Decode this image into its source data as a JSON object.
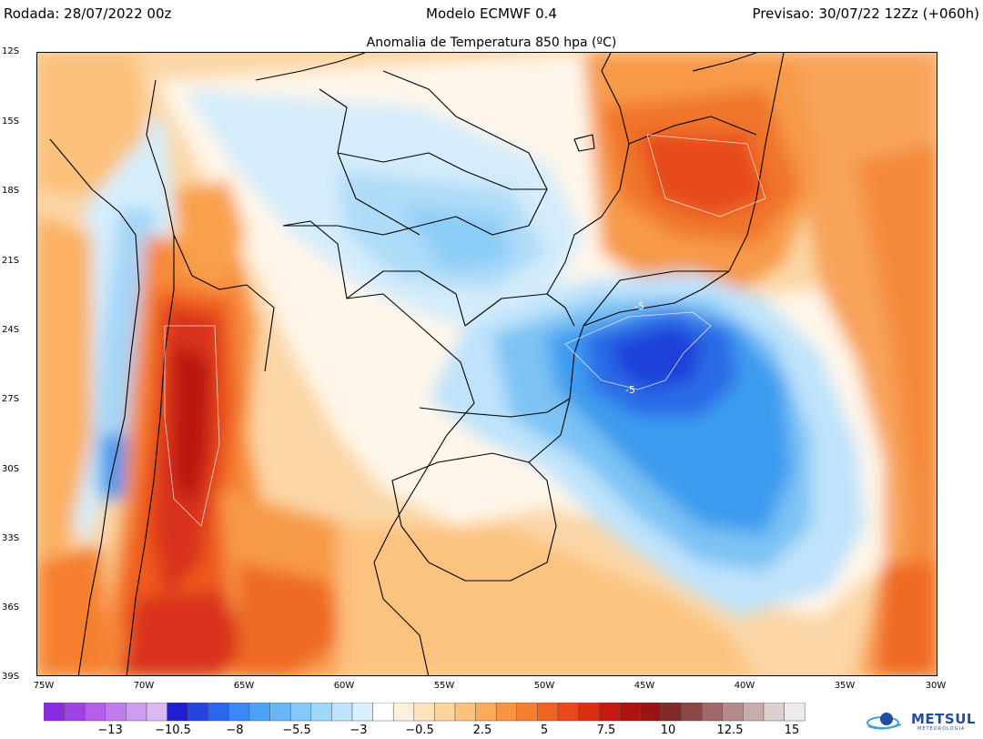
{
  "header": {
    "left": "Rodada: 28/07/2022 00z",
    "center": "Modelo ECMWF 0.4",
    "right": "Previsao: 30/07/22 12Zz (+060h)"
  },
  "map": {
    "title": "Anomalia de Temperatura 850 hpa (ºC)",
    "lat_labels": [
      "12S",
      "15S",
      "18S",
      "21S",
      "24S",
      "27S",
      "30S",
      "33S",
      "36S",
      "39S"
    ],
    "lon_labels": [
      "75W",
      "70W",
      "65W",
      "60W",
      "55W",
      "50W",
      "45W",
      "40W",
      "35W",
      "30W"
    ],
    "contour_labels": [
      "-5",
      "-5"
    ],
    "lon_range": [
      -75,
      -30
    ],
    "lat_range": [
      -39,
      -12
    ],
    "anomaly_features": [
      {
        "name": "cold-core-south-brazil-coast",
        "lon": -45.5,
        "lat": -24.3,
        "value": -9
      },
      {
        "name": "cold-ocean-extension",
        "lon": -44,
        "lat": -29.5,
        "value": -5.5
      },
      {
        "name": "cold-pacific-chile",
        "lon": -72,
        "lat": -29.5,
        "value": -6
      },
      {
        "name": "warm-andes-argentina",
        "lon": -68.5,
        "lat": -29,
        "value": 10
      },
      {
        "name": "warm-patagonia",
        "lon": -68,
        "lat": -37,
        "value": 9
      },
      {
        "name": "warm-bahia",
        "lon": -42.5,
        "lat": -16.5,
        "value": 8
      },
      {
        "name": "cool-central-brazil",
        "lon": -55,
        "lat": -19,
        "value": -2.5
      }
    ]
  },
  "colorbar": {
    "colors": [
      "#8c2ce0",
      "#a241e6",
      "#b45eea",
      "#c07ced",
      "#ce9df0",
      "#dab8f3",
      "#1f1fd1",
      "#2645e0",
      "#2c66ec",
      "#3c86f5",
      "#4aa1f8",
      "#67b6fa",
      "#86c8fb",
      "#a2d7fc",
      "#bee4fd",
      "#d7effe",
      "#ffffff",
      "#fff0dc",
      "#fee3bd",
      "#fdd49c",
      "#fcc17a",
      "#fbab59",
      "#f99540",
      "#f57f2e",
      "#ef6421",
      "#e8481a",
      "#dc2e15",
      "#c81a12",
      "#b0120f",
      "#991214",
      "#822a2a",
      "#8e4747",
      "#a06868",
      "#b48a8a",
      "#c8adad",
      "#dccfcf",
      "#f0ebeb"
    ],
    "labels": [
      "−13",
      "−10.5",
      "−8",
      "−5.5",
      "−3",
      "−0.5",
      "2.5",
      "5",
      "7.5",
      "10",
      "12.5",
      "15"
    ]
  },
  "logo": {
    "text": "METSUL",
    "subtext": "METEOROLOGIA"
  }
}
